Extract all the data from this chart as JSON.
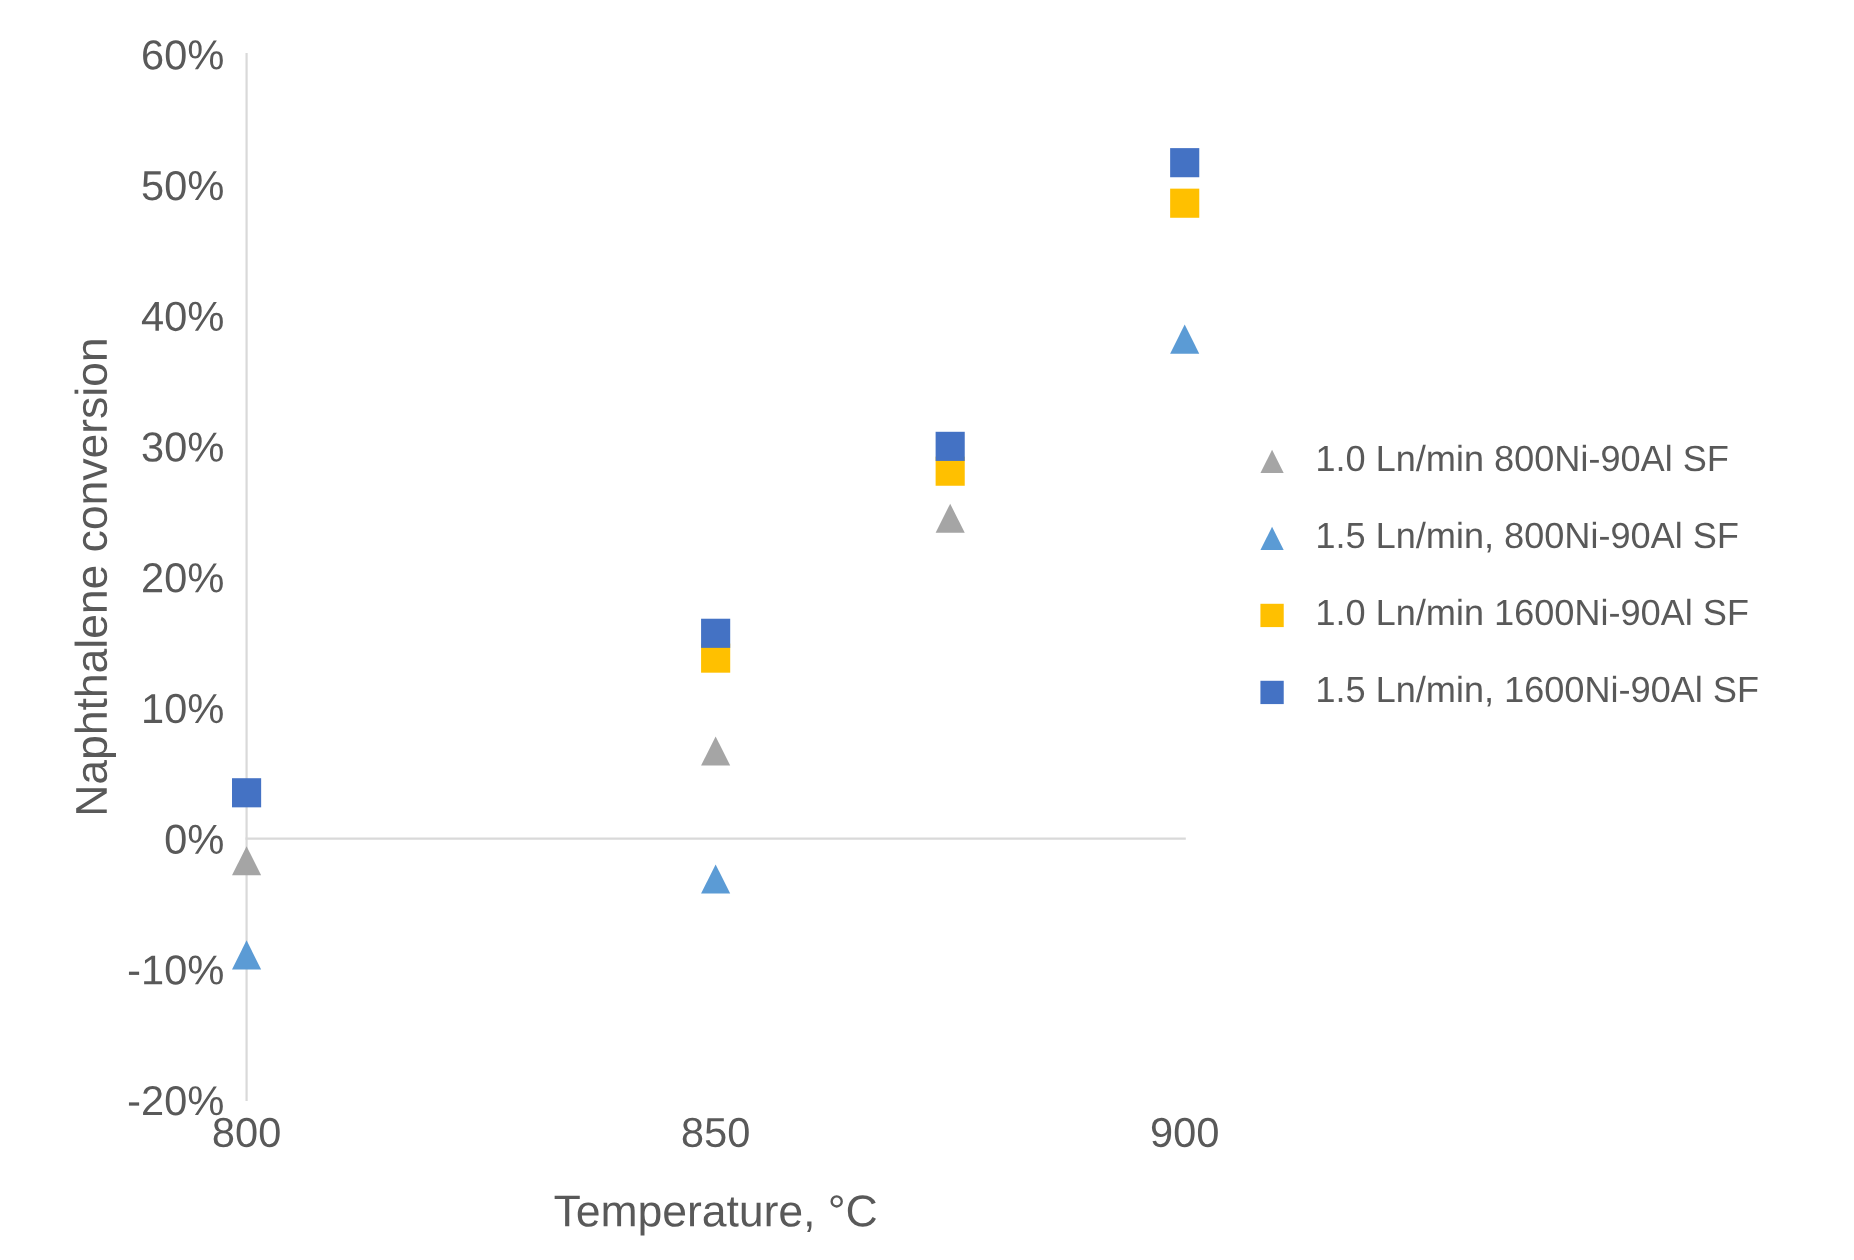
{
  "chart_data": {
    "type": "scatter",
    "xlabel": "Temperature, °C",
    "ylabel": "Naphthalene conversion",
    "xlim": [
      800,
      900
    ],
    "xticks": [
      800,
      850,
      900
    ],
    "ylim": [
      -20,
      60
    ],
    "yticks": [
      {
        "value": -20,
        "label": "-20%"
      },
      {
        "value": -10,
        "label": "-10%"
      },
      {
        "value": 0,
        "label": "0%"
      },
      {
        "value": 10,
        "label": "10%"
      },
      {
        "value": 20,
        "label": "20%"
      },
      {
        "value": 30,
        "label": "30%"
      },
      {
        "value": 40,
        "label": "40%"
      },
      {
        "value": 50,
        "label": "50%"
      },
      {
        "value": 60,
        "label": "60%"
      }
    ],
    "legend": "right",
    "series": [
      {
        "name": "1.0 Ln/min 800Ni-90Al SF",
        "color": "#a5a5a5",
        "marker": "triangle",
        "x": [
          800,
          850,
          875
        ],
        "values": [
          -1.7,
          6.7,
          24.5
        ]
      },
      {
        "name": "1.5 Ln/min, 800Ni-90Al SF",
        "color": "#5b9bd5",
        "marker": "triangle",
        "x": [
          800,
          850,
          900
        ],
        "values": [
          -8.9,
          -3.1,
          38.2
        ]
      },
      {
        "name": "1.0 Ln/min 1600Ni-90Al SF",
        "color": "#ffc000",
        "marker": "square",
        "x": [
          850,
          875,
          900
        ],
        "values": [
          13.8,
          28.1,
          48.6
        ]
      },
      {
        "name": "1.5 Ln/min, 1600Ni-90Al SF",
        "color": "#4472c4",
        "marker": "square",
        "x": [
          800,
          850,
          875,
          900
        ],
        "values": [
          3.5,
          15.7,
          30.0,
          51.7
        ]
      }
    ]
  }
}
